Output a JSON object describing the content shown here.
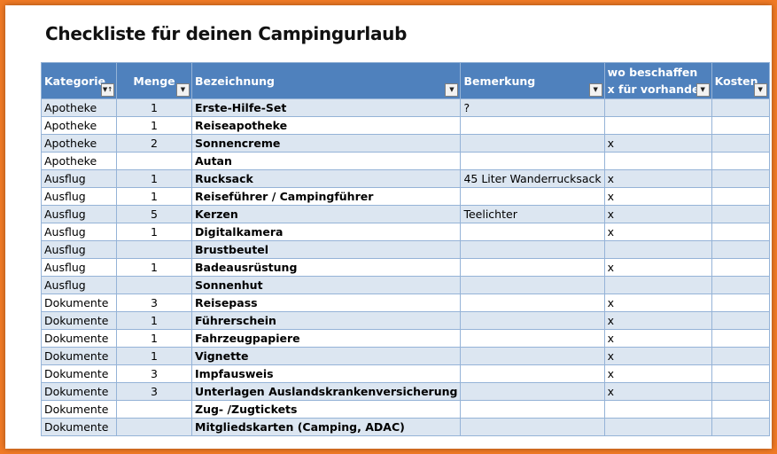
{
  "title": "Checkliste für deinen Campingurlaub",
  "headers": {
    "kategorie": "Kategorie",
    "menge": "Menge",
    "bezeichnung": "Bezeichnung",
    "bemerkung": "Bemerkung",
    "beschaffen_line1": "wo beschaffen",
    "beschaffen_line2": "x für vorhanden",
    "kosten": "Kosten"
  },
  "filter_icons": {
    "sorted": "sort-filter-icon",
    "default": "dropdown-arrow-icon"
  },
  "rows": [
    {
      "kategorie": "Apotheke",
      "menge": "1",
      "bezeichnung": "Erste-Hilfe-Set",
      "bemerkung": "?",
      "beschaffen": "",
      "kosten": ""
    },
    {
      "kategorie": "Apotheke",
      "menge": "1",
      "bezeichnung": "Reiseapotheke",
      "bemerkung": "",
      "beschaffen": "",
      "kosten": ""
    },
    {
      "kategorie": "Apotheke",
      "menge": "2",
      "bezeichnung": "Sonnencreme",
      "bemerkung": "",
      "beschaffen": "x",
      "kosten": ""
    },
    {
      "kategorie": "Apotheke",
      "menge": "",
      "bezeichnung": "Autan",
      "bemerkung": "",
      "beschaffen": "",
      "kosten": ""
    },
    {
      "kategorie": "Ausflug",
      "menge": "1",
      "bezeichnung": "Rucksack",
      "bemerkung": "45 Liter Wanderrucksack",
      "beschaffen": "x",
      "kosten": ""
    },
    {
      "kategorie": "Ausflug",
      "menge": "1",
      "bezeichnung": "Reiseführer / Campingführer",
      "bemerkung": "",
      "beschaffen": "x",
      "kosten": ""
    },
    {
      "kategorie": "Ausflug",
      "menge": "5",
      "bezeichnung": "Kerzen",
      "bemerkung": "Teelichter",
      "beschaffen": "x",
      "kosten": ""
    },
    {
      "kategorie": "Ausflug",
      "menge": "1",
      "bezeichnung": "Digitalkamera",
      "bemerkung": "",
      "beschaffen": "x",
      "kosten": ""
    },
    {
      "kategorie": "Ausflug",
      "menge": "",
      "bezeichnung": "Brustbeutel",
      "bemerkung": "",
      "beschaffen": "",
      "kosten": ""
    },
    {
      "kategorie": "Ausflug",
      "menge": "1",
      "bezeichnung": "Badeausrüstung",
      "bemerkung": "",
      "beschaffen": "x",
      "kosten": ""
    },
    {
      "kategorie": "Ausflug",
      "menge": "",
      "bezeichnung": "Sonnenhut",
      "bemerkung": "",
      "beschaffen": "",
      "kosten": ""
    },
    {
      "kategorie": "Dokumente",
      "menge": "3",
      "bezeichnung": "Reisepass",
      "bemerkung": "",
      "beschaffen": "x",
      "kosten": ""
    },
    {
      "kategorie": "Dokumente",
      "menge": "1",
      "bezeichnung": "Führerschein",
      "bemerkung": "",
      "beschaffen": "x",
      "kosten": ""
    },
    {
      "kategorie": "Dokumente",
      "menge": "1",
      "bezeichnung": "Fahrzeugpapiere",
      "bemerkung": "",
      "beschaffen": "x",
      "kosten": ""
    },
    {
      "kategorie": "Dokumente",
      "menge": "1",
      "bezeichnung": "Vignette",
      "bemerkung": "",
      "beschaffen": "x",
      "kosten": ""
    },
    {
      "kategorie": "Dokumente",
      "menge": "3",
      "bezeichnung": "Impfausweis",
      "bemerkung": "",
      "beschaffen": "x",
      "kosten": ""
    },
    {
      "kategorie": "Dokumente",
      "menge": "3",
      "bezeichnung": "Unterlagen Auslandskrankenversicherung",
      "bemerkung": "",
      "beschaffen": "x",
      "kosten": ""
    },
    {
      "kategorie": "Dokumente",
      "menge": "",
      "bezeichnung": "Zug- /Zugtickets",
      "bemerkung": "",
      "beschaffen": "",
      "kosten": ""
    },
    {
      "kategorie": "Dokumente",
      "menge": "",
      "bezeichnung": "Mitgliedskarten (Camping, ADAC)",
      "bemerkung": "",
      "beschaffen": "",
      "kosten": ""
    }
  ],
  "colors": {
    "header_bg": "#4f81bd",
    "band_row": "#dce6f1",
    "border": "#95b3d7",
    "page_border": "#f07a25"
  }
}
